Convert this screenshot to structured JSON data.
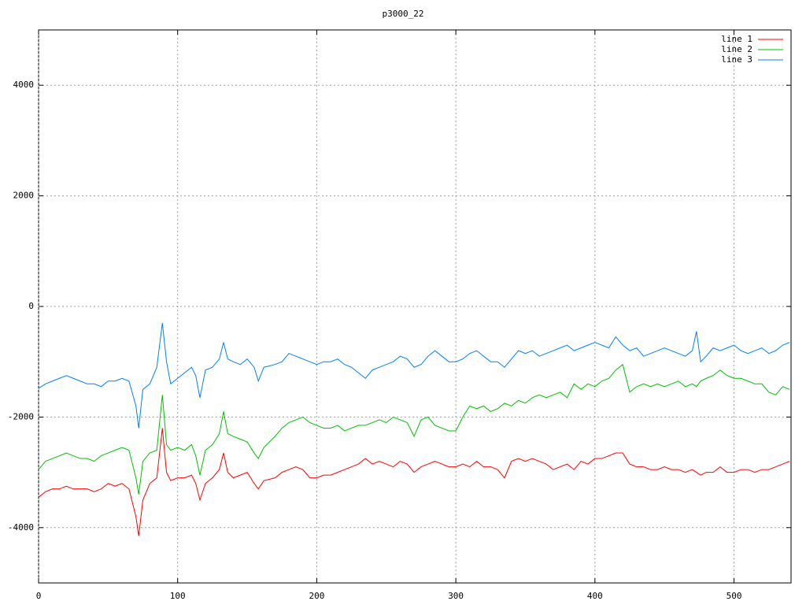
{
  "chart_data": {
    "type": "line",
    "title": "p3000_22",
    "x": [
      0,
      5,
      10,
      15,
      20,
      25,
      30,
      35,
      40,
      45,
      50,
      55,
      60,
      65,
      70,
      72,
      75,
      80,
      85,
      89,
      92,
      95,
      100,
      105,
      110,
      113,
      116,
      120,
      125,
      130,
      133,
      136,
      140,
      145,
      150,
      155,
      158,
      162,
      170,
      175,
      180,
      185,
      190,
      195,
      200,
      205,
      210,
      215,
      220,
      225,
      230,
      235,
      240,
      245,
      250,
      255,
      260,
      265,
      270,
      275,
      280,
      285,
      290,
      295,
      300,
      305,
      310,
      315,
      320,
      325,
      330,
      335,
      340,
      345,
      350,
      355,
      360,
      365,
      370,
      375,
      380,
      385,
      390,
      395,
      400,
      405,
      410,
      415,
      420,
      425,
      430,
      435,
      440,
      445,
      450,
      455,
      460,
      465,
      470,
      473,
      476,
      480,
      485,
      490,
      495,
      500,
      505,
      510,
      515,
      520,
      525,
      530,
      535,
      540
    ],
    "series": [
      {
        "name": "line 1",
        "color": "#ff0000",
        "values": [
          -3450,
          -3350,
          -3300,
          -3300,
          -3250,
          -3300,
          -3300,
          -3300,
          -3350,
          -3300,
          -3200,
          -3250,
          -3200,
          -3300,
          -3800,
          -4150,
          -3500,
          -3200,
          -3100,
          -2200,
          -3000,
          -3150,
          -3100,
          -3100,
          -3050,
          -3200,
          -3500,
          -3200,
          -3100,
          -2950,
          -2650,
          -3000,
          -3100,
          -3050,
          -3000,
          -3200,
          -3300,
          -3150,
          -3100,
          -3000,
          -2950,
          -2900,
          -2950,
          -3100,
          -3100,
          -3050,
          -3050,
          -3000,
          -2950,
          -2900,
          -2850,
          -2750,
          -2850,
          -2800,
          -2850,
          -2900,
          -2800,
          -2850,
          -3000,
          -2900,
          -2850,
          -2800,
          -2850,
          -2900,
          -2900,
          -2850,
          -2900,
          -2800,
          -2900,
          -2900,
          -2950,
          -3100,
          -2800,
          -2750,
          -2800,
          -2750,
          -2800,
          -2850,
          -2950,
          -2900,
          -2850,
          -2950,
          -2800,
          -2850,
          -2750,
          -2750,
          -2700,
          -2650,
          -2650,
          -2850,
          -2900,
          -2900,
          -2950,
          -2950,
          -2900,
          -2950,
          -2950,
          -3000,
          -2950,
          -3000,
          -3050,
          -3000,
          -3000,
          -2900,
          -3000,
          -3000,
          -2950,
          -2950,
          -3000,
          -2950,
          -2950,
          -2900,
          -2850,
          -2800
        ]
      },
      {
        "name": "line 2",
        "color": "#00c000",
        "values": [
          -2950,
          -2800,
          -2750,
          -2700,
          -2650,
          -2700,
          -2750,
          -2750,
          -2800,
          -2700,
          -2650,
          -2600,
          -2550,
          -2600,
          -3100,
          -3400,
          -2800,
          -2650,
          -2600,
          -1600,
          -2500,
          -2600,
          -2550,
          -2600,
          -2500,
          -2700,
          -3050,
          -2600,
          -2500,
          -2300,
          -1900,
          -2300,
          -2350,
          -2400,
          -2450,
          -2650,
          -2750,
          -2550,
          -2350,
          -2200,
          -2100,
          -2050,
          -2000,
          -2100,
          -2150,
          -2200,
          -2200,
          -2150,
          -2250,
          -2200,
          -2150,
          -2150,
          -2100,
          -2050,
          -2100,
          -2000,
          -2050,
          -2100,
          -2350,
          -2050,
          -2000,
          -2150,
          -2200,
          -2250,
          -2250,
          -2000,
          -1800,
          -1850,
          -1800,
          -1900,
          -1850,
          -1750,
          -1800,
          -1700,
          -1750,
          -1650,
          -1600,
          -1650,
          -1600,
          -1550,
          -1650,
          -1400,
          -1500,
          -1400,
          -1450,
          -1350,
          -1300,
          -1150,
          -1050,
          -1550,
          -1450,
          -1400,
          -1450,
          -1400,
          -1450,
          -1400,
          -1350,
          -1450,
          -1400,
          -1450,
          -1350,
          -1300,
          -1250,
          -1150,
          -1250,
          -1300,
          -1300,
          -1350,
          -1400,
          -1400,
          -1550,
          -1600,
          -1450,
          -1500
        ]
      },
      {
        "name": "line 3",
        "color": "#0080ff",
        "values": [
          -1480,
          -1400,
          -1350,
          -1300,
          -1250,
          -1300,
          -1350,
          -1400,
          -1400,
          -1450,
          -1350,
          -1350,
          -1300,
          -1350,
          -1800,
          -2200,
          -1500,
          -1400,
          -1100,
          -300,
          -1000,
          -1400,
          -1300,
          -1200,
          -1100,
          -1250,
          -1650,
          -1150,
          -1100,
          -950,
          -650,
          -950,
          -1000,
          -1050,
          -950,
          -1100,
          -1350,
          -1100,
          -1050,
          -1000,
          -850,
          -900,
          -950,
          -1000,
          -1050,
          -1000,
          -1000,
          -950,
          -1050,
          -1100,
          -1200,
          -1300,
          -1150,
          -1100,
          -1050,
          -1000,
          -900,
          -950,
          -1100,
          -1050,
          -900,
          -800,
          -900,
          -1000,
          -1000,
          -950,
          -850,
          -800,
          -900,
          -1000,
          -1000,
          -1100,
          -950,
          -800,
          -850,
          -800,
          -900,
          -850,
          -800,
          -750,
          -700,
          -800,
          -750,
          -700,
          -650,
          -700,
          -750,
          -550,
          -700,
          -800,
          -750,
          -900,
          -850,
          -800,
          -750,
          -800,
          -850,
          -900,
          -800,
          -450,
          -1000,
          -900,
          -750,
          -800,
          -750,
          -700,
          -800,
          -850,
          -800,
          -750,
          -850,
          -800,
          -700,
          -650
        ]
      }
    ],
    "xlim": [
      0,
      541
    ],
    "ylim": [
      -5000,
      5000
    ],
    "xticks": [
      0,
      100,
      200,
      300,
      400,
      500
    ],
    "yticks": [
      -4000,
      -2000,
      0,
      2000,
      4000
    ],
    "grid": true,
    "legend": "top right"
  }
}
